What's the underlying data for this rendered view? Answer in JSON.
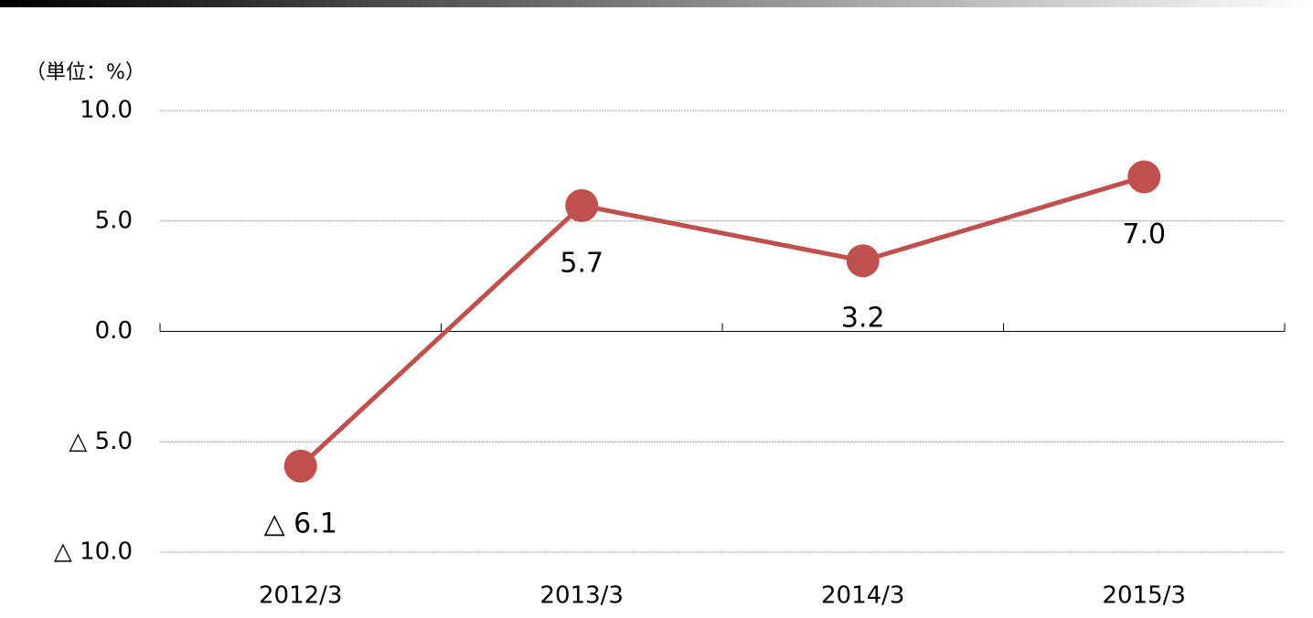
{
  "chart_data": {
    "type": "line",
    "unit_label": "（単位：%）",
    "categories": [
      "2012/3",
      "2013/3",
      "2014/3",
      "2015/3"
    ],
    "series": [
      {
        "color": "#c0504d",
        "values": [
          -6.1,
          5.7,
          3.2,
          7.0
        ],
        "value_labels": [
          "△ 6.1",
          "5.7",
          "3.2",
          "7.0"
        ]
      }
    ],
    "ylim": [
      -10,
      10
    ],
    "yticks": [
      {
        "value": 10,
        "label": "10.0"
      },
      {
        "value": 5,
        "label": "5.0"
      },
      {
        "value": 0,
        "label": "0.0"
      },
      {
        "value": -5,
        "label": "△ 5.0"
      },
      {
        "value": -10,
        "label": "△ 10.0"
      }
    ],
    "grid": true
  }
}
